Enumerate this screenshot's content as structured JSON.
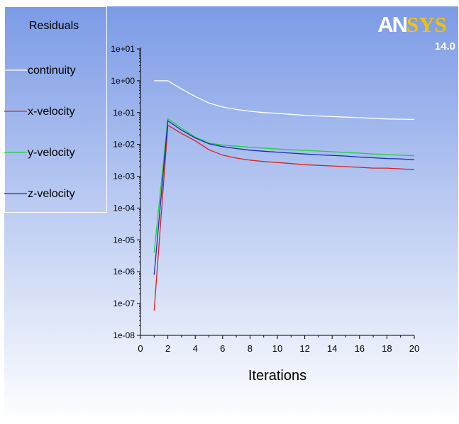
{
  "brand": {
    "logo_text_a": "AN",
    "logo_text_b": "SYS",
    "version": "14.0",
    "logo_color_a": "#ffffff",
    "logo_color_b": "#f2c200"
  },
  "legend": {
    "title": "Residuals"
  },
  "colors": {
    "background_top": "#7c9be6",
    "background_bottom": "#ffffff",
    "axis": "#000000"
  },
  "chart_data": {
    "type": "line",
    "title": "",
    "xlabel": "Iterations",
    "ylabel": "",
    "y_scale": "log",
    "xlim": [
      0,
      20
    ],
    "ylim": [
      1e-08,
      10
    ],
    "x_ticks": [
      0,
      2,
      4,
      6,
      8,
      10,
      12,
      14,
      16,
      18,
      20
    ],
    "x_tick_labels": [
      "0",
      "2",
      "4",
      "6",
      "8",
      "10",
      "12",
      "14",
      "16",
      "18",
      "20"
    ],
    "y_ticks": [
      10,
      1,
      0.1,
      0.01,
      0.001,
      0.0001,
      1e-05,
      1e-06,
      1e-07,
      1e-08
    ],
    "y_tick_labels": [
      "1e+01",
      "1e+00",
      "1e-01",
      "1e-02",
      "1e-03",
      "1e-04",
      "1e-05",
      "1e-06",
      "1e-07",
      "1e-08"
    ],
    "legend_position": "top-left",
    "grid": false,
    "series": [
      {
        "name": "continuity",
        "color": "#ffffff",
        "x": [
          1,
          2,
          3,
          4,
          5,
          6,
          7,
          8,
          9,
          10,
          11,
          12,
          13,
          14,
          15,
          16,
          17,
          18,
          19,
          20
        ],
        "y": [
          1.0,
          1.0,
          0.55,
          0.32,
          0.2,
          0.15,
          0.125,
          0.11,
          0.1,
          0.095,
          0.088,
          0.082,
          0.078,
          0.075,
          0.072,
          0.069,
          0.066,
          0.063,
          0.062,
          0.061
        ]
      },
      {
        "name": "x-velocity",
        "color": "#d92020",
        "x": [
          1,
          2,
          3,
          4,
          5,
          6,
          7,
          8,
          9,
          10,
          11,
          12,
          13,
          14,
          15,
          16,
          17,
          18,
          19,
          20
        ],
        "y": [
          6e-08,
          0.04,
          0.022,
          0.013,
          0.0068,
          0.0046,
          0.0037,
          0.0032,
          0.0029,
          0.0027,
          0.0025,
          0.0023,
          0.0022,
          0.0021,
          0.002,
          0.0019,
          0.0018,
          0.0018,
          0.0017,
          0.0016
        ]
      },
      {
        "name": "y-velocity",
        "color": "#20d040",
        "x": [
          1,
          2,
          3,
          4,
          5,
          6,
          7,
          8,
          9,
          10,
          11,
          12,
          13,
          14,
          15,
          16,
          17,
          18,
          19,
          20
        ],
        "y": [
          4e-06,
          0.065,
          0.032,
          0.017,
          0.011,
          0.0095,
          0.0088,
          0.0082,
          0.0077,
          0.0072,
          0.0068,
          0.0065,
          0.0062,
          0.0059,
          0.0056,
          0.0053,
          0.005,
          0.0048,
          0.0046,
          0.0044
        ]
      },
      {
        "name": "z-velocity",
        "color": "#1a2fb0",
        "x": [
          1,
          2,
          3,
          4,
          5,
          6,
          7,
          8,
          9,
          10,
          11,
          12,
          13,
          14,
          15,
          16,
          17,
          18,
          19,
          20
        ],
        "y": [
          8e-07,
          0.055,
          0.028,
          0.016,
          0.0105,
          0.0085,
          0.0074,
          0.0066,
          0.0061,
          0.0057,
          0.0053,
          0.005,
          0.0047,
          0.0045,
          0.0043,
          0.004,
          0.0038,
          0.0036,
          0.0035,
          0.0033
        ]
      }
    ]
  }
}
